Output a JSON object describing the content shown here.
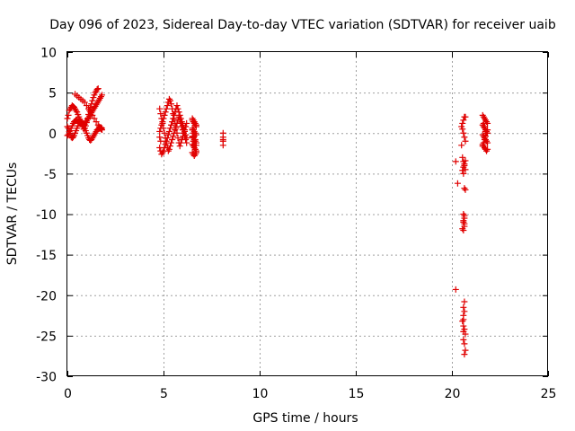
{
  "chart_data": {
    "type": "scatter",
    "title": "Day 096 of 2023, Sidereal Day-to-day VTEC variation (SDTVAR) for receiver uaib",
    "xlabel": "GPS time / hours",
    "ylabel": "SDTVAR / TECUs",
    "xlim": [
      0,
      25
    ],
    "ylim": [
      -30,
      10
    ],
    "xticks": [
      0,
      5,
      10,
      15,
      20,
      25
    ],
    "yticks": [
      -30,
      -25,
      -20,
      -15,
      -10,
      -5,
      0,
      5,
      10
    ],
    "grid": true,
    "marker": "+",
    "color": "#e00000",
    "series": [
      {
        "name": "uaib",
        "x": [
          0.0,
          0.05,
          0.1,
          0.15,
          0.2,
          0.25,
          0.3,
          0.35,
          0.4,
          0.45,
          0.5,
          0.55,
          0.6,
          0.65,
          0.7,
          0.75,
          0.8,
          0.85,
          0.9,
          0.95,
          1.0,
          1.05,
          1.1,
          1.15,
          1.2,
          1.25,
          1.3,
          1.35,
          1.4,
          1.45,
          1.5,
          1.55,
          1.6,
          1.65,
          1.7,
          1.75,
          1.8,
          0.0,
          0.05,
          0.1,
          0.15,
          0.2,
          0.25,
          0.3,
          0.35,
          0.4,
          0.45,
          0.5,
          0.55,
          0.6,
          0.65,
          0.7,
          0.75,
          0.8,
          0.85,
          0.9,
          0.95,
          1.0,
          1.05,
          1.1,
          1.15,
          1.2,
          1.25,
          1.3,
          1.35,
          1.4,
          1.45,
          1.5,
          1.55,
          1.6,
          1.65,
          1.7,
          1.75,
          1.8,
          0.0,
          0.05,
          0.1,
          0.15,
          0.2,
          0.25,
          0.3,
          0.35,
          0.4,
          0.45,
          0.5,
          0.55,
          0.6,
          0.65,
          0.7,
          0.75,
          0.8,
          0.85,
          0.9,
          0.95,
          1.0,
          1.05,
          1.1,
          1.15,
          1.2,
          1.25,
          1.3,
          1.35,
          1.4,
          1.45,
          1.5,
          1.55,
          1.6,
          1.65,
          1.7,
          1.75,
          1.8,
          0.4,
          0.5,
          0.6,
          0.7,
          0.8,
          0.9,
          1.0,
          1.1,
          1.2,
          1.3,
          1.4,
          1.5,
          1.6,
          1.7,
          4.8,
          4.85,
          4.9,
          4.95,
          5.0,
          5.05,
          5.1,
          5.15,
          5.2,
          5.25,
          5.3,
          5.35,
          5.4,
          5.45,
          5.5,
          5.55,
          5.6,
          5.65,
          5.7,
          5.75,
          5.8,
          5.85,
          5.9,
          5.95,
          6.0,
          6.05,
          6.1,
          6.15,
          6.2,
          4.8,
          4.85,
          4.9,
          4.95,
          5.0,
          5.05,
          5.1,
          5.15,
          5.2,
          5.25,
          5.3,
          5.35,
          5.4,
          5.45,
          5.5,
          5.55,
          5.6,
          5.65,
          5.7,
          5.75,
          5.8,
          5.85,
          5.9,
          5.95,
          6.0,
          6.05,
          6.1,
          6.15,
          6.2,
          4.8,
          4.85,
          4.9,
          4.95,
          5.0,
          5.05,
          5.1,
          5.15,
          5.2,
          5.25,
          5.3,
          5.35,
          5.4,
          5.45,
          5.5,
          5.55,
          5.6,
          5.65,
          5.7,
          5.75,
          5.8,
          5.85,
          5.9,
          5.95,
          6.0,
          6.05,
          6.1,
          6.15,
          6.2,
          4.8,
          4.85,
          6.5,
          6.55,
          6.6,
          6.65,
          6.7,
          6.5,
          6.55,
          6.6,
          6.65,
          6.7,
          6.5,
          6.55,
          6.6,
          6.65,
          6.7,
          6.5,
          6.55,
          6.6,
          6.65,
          6.7,
          6.5,
          6.55,
          6.6,
          6.65,
          6.7,
          6.5,
          6.55,
          6.6,
          6.65,
          6.7,
          6.5,
          6.55,
          6.6,
          6.65,
          6.7,
          6.5,
          6.55,
          6.6,
          6.65,
          6.7,
          8.1,
          8.1,
          8.1,
          8.1,
          8.1,
          20.2,
          20.3,
          20.5,
          20.55,
          20.6,
          20.65,
          20.7,
          20.55,
          20.6,
          20.65,
          20.7,
          20.5,
          20.55,
          20.6,
          20.65,
          20.7,
          20.6,
          20.65,
          20.7,
          20.55,
          20.6,
          20.65,
          20.7,
          20.6,
          20.65,
          20.6,
          20.65,
          20.55,
          20.6,
          20.65,
          20.6,
          20.65,
          20.2,
          20.65,
          20.6,
          20.65,
          20.6,
          20.55,
          20.6,
          20.65,
          20.7,
          20.6,
          20.65,
          20.7,
          20.65,
          20.6,
          20.6,
          21.6,
          21.65,
          21.7,
          21.75,
          21.8,
          21.85,
          21.6,
          21.65,
          21.7,
          21.75,
          21.8,
          21.85,
          21.6,
          21.65,
          21.7,
          21.75,
          21.8,
          21.85,
          21.6,
          21.65,
          21.7,
          21.75,
          21.8,
          21.85,
          21.6,
          21.65,
          21.7,
          21.75,
          21.8,
          21.85,
          21.65,
          21.7,
          21.75
        ],
        "y": [
          1.8,
          2.2,
          2.8,
          3.0,
          3.2,
          3.4,
          3.3,
          3.2,
          3.0,
          2.8,
          2.6,
          2.3,
          2.0,
          1.7,
          1.4,
          1.1,
          0.8,
          0.5,
          0.6,
          0.9,
          1.3,
          1.8,
          2.3,
          2.8,
          3.2,
          3.6,
          4.0,
          4.4,
          4.7,
          5.0,
          5.2,
          5.4,
          5.5,
          0.8,
          0.6,
          0.5,
          0.4,
          -0.3,
          -0.2,
          0.0,
          0.3,
          0.6,
          0.9,
          1.2,
          1.4,
          1.5,
          1.6,
          1.6,
          1.5,
          1.4,
          1.3,
          1.2,
          1.1,
          1.0,
          1.0,
          1.1,
          1.3,
          1.5,
          1.7,
          1.9,
          2.1,
          2.3,
          2.5,
          2.7,
          2.9,
          3.1,
          3.3,
          3.5,
          3.7,
          3.9,
          4.1,
          4.3,
          4.5,
          4.7,
          0.8,
          0.6,
          0.2,
          -0.2,
          -0.5,
          -0.6,
          -0.5,
          -0.3,
          0.0,
          0.3,
          0.6,
          0.9,
          1.2,
          1.4,
          1.5,
          1.4,
          1.2,
          0.9,
          0.6,
          0.3,
          0.0,
          -0.3,
          -0.6,
          -0.8,
          -0.9,
          -0.8,
          -0.6,
          -0.4,
          -0.2,
          0.0,
          0.2,
          0.4,
          0.5,
          0.6,
          0.7,
          0.7,
          0.6,
          4.8,
          4.6,
          4.4,
          4.2,
          4.0,
          3.8,
          3.4,
          3.0,
          2.6,
          2.2,
          1.8,
          1.4,
          1.0,
          0.6,
          3.0,
          2.4,
          1.8,
          1.2,
          0.6,
          0.0,
          -0.6,
          -1.2,
          -1.8,
          -2.2,
          -2.0,
          -1.6,
          -1.2,
          -0.8,
          -0.4,
          0.0,
          0.4,
          0.8,
          1.2,
          1.6,
          2.0,
          1.6,
          1.2,
          0.8,
          0.4,
          0.0,
          -0.4,
          -0.8,
          -1.2,
          -1.8,
          -2.2,
          -2.6,
          -2.4,
          -2.2,
          -1.8,
          -1.4,
          -1.0,
          -0.6,
          -0.2,
          0.2,
          0.6,
          1.0,
          1.4,
          1.8,
          2.2,
          2.6,
          3.0,
          3.4,
          3.0,
          2.6,
          2.2,
          1.8,
          1.4,
          1.0,
          0.6,
          0.2,
          -0.2,
          -0.6,
          0.2,
          0.6,
          1.0,
          1.4,
          1.8,
          2.2,
          2.6,
          3.0,
          3.4,
          3.8,
          4.2,
          4.0,
          3.6,
          3.0,
          2.4,
          1.8,
          1.2,
          0.6,
          0.0,
          -0.6,
          -1.2,
          -1.6,
          -1.2,
          -0.8,
          -0.4,
          0.0,
          0.4,
          0.8,
          1.2,
          -0.5,
          -1.0,
          1.6,
          1.4,
          1.2,
          1.0,
          0.8,
          0.6,
          0.4,
          0.2,
          0.0,
          -0.2,
          -0.4,
          -0.6,
          -0.8,
          -1.0,
          -1.2,
          -1.4,
          -1.6,
          -1.8,
          -2.0,
          -2.2,
          -2.4,
          -2.6,
          -2.8,
          -2.6,
          -2.4,
          -0.5,
          -1.0,
          -1.5,
          -2.0,
          -1.5,
          1.8,
          1.6,
          1.4,
          1.2,
          1.0,
          0.4,
          0.0,
          -0.4,
          -0.8,
          -1.2,
          0.0,
          -0.5,
          -1.0,
          -1.5,
          -0.8,
          -3.5,
          -6.2,
          0.8,
          1.2,
          1.6,
          2.0,
          2.0,
          0.5,
          0.0,
          -0.5,
          -1.0,
          -1.5,
          -3.0,
          -3.5,
          -4.0,
          -4.5,
          -4.2,
          -3.8,
          -3.4,
          -4.6,
          -5.0,
          -6.8,
          -7.0,
          -10.0,
          -10.5,
          -11.0,
          -11.5,
          -11.8,
          -12.0,
          -11.2,
          -10.8,
          -10.2,
          -19.3,
          -20.8,
          -21.5,
          -22.0,
          -22.5,
          -23.2,
          -23.8,
          -24.2,
          -24.8,
          -25.5,
          -26.0,
          -26.8,
          -27.3,
          -24.5,
          -23.0,
          2.2,
          2.0,
          1.8,
          1.6,
          1.4,
          1.2,
          1.0,
          0.8,
          0.6,
          0.4,
          0.2,
          0.0,
          -0.2,
          -0.4,
          -0.6,
          -0.8,
          -1.0,
          -1.2,
          -1.4,
          -1.6,
          -1.8,
          -2.0,
          -2.2,
          -2.0,
          -1.6,
          -1.2,
          -0.8,
          -0.4,
          0.0,
          0.4,
          1.2,
          0.8,
          0.2
        ]
      }
    ]
  }
}
